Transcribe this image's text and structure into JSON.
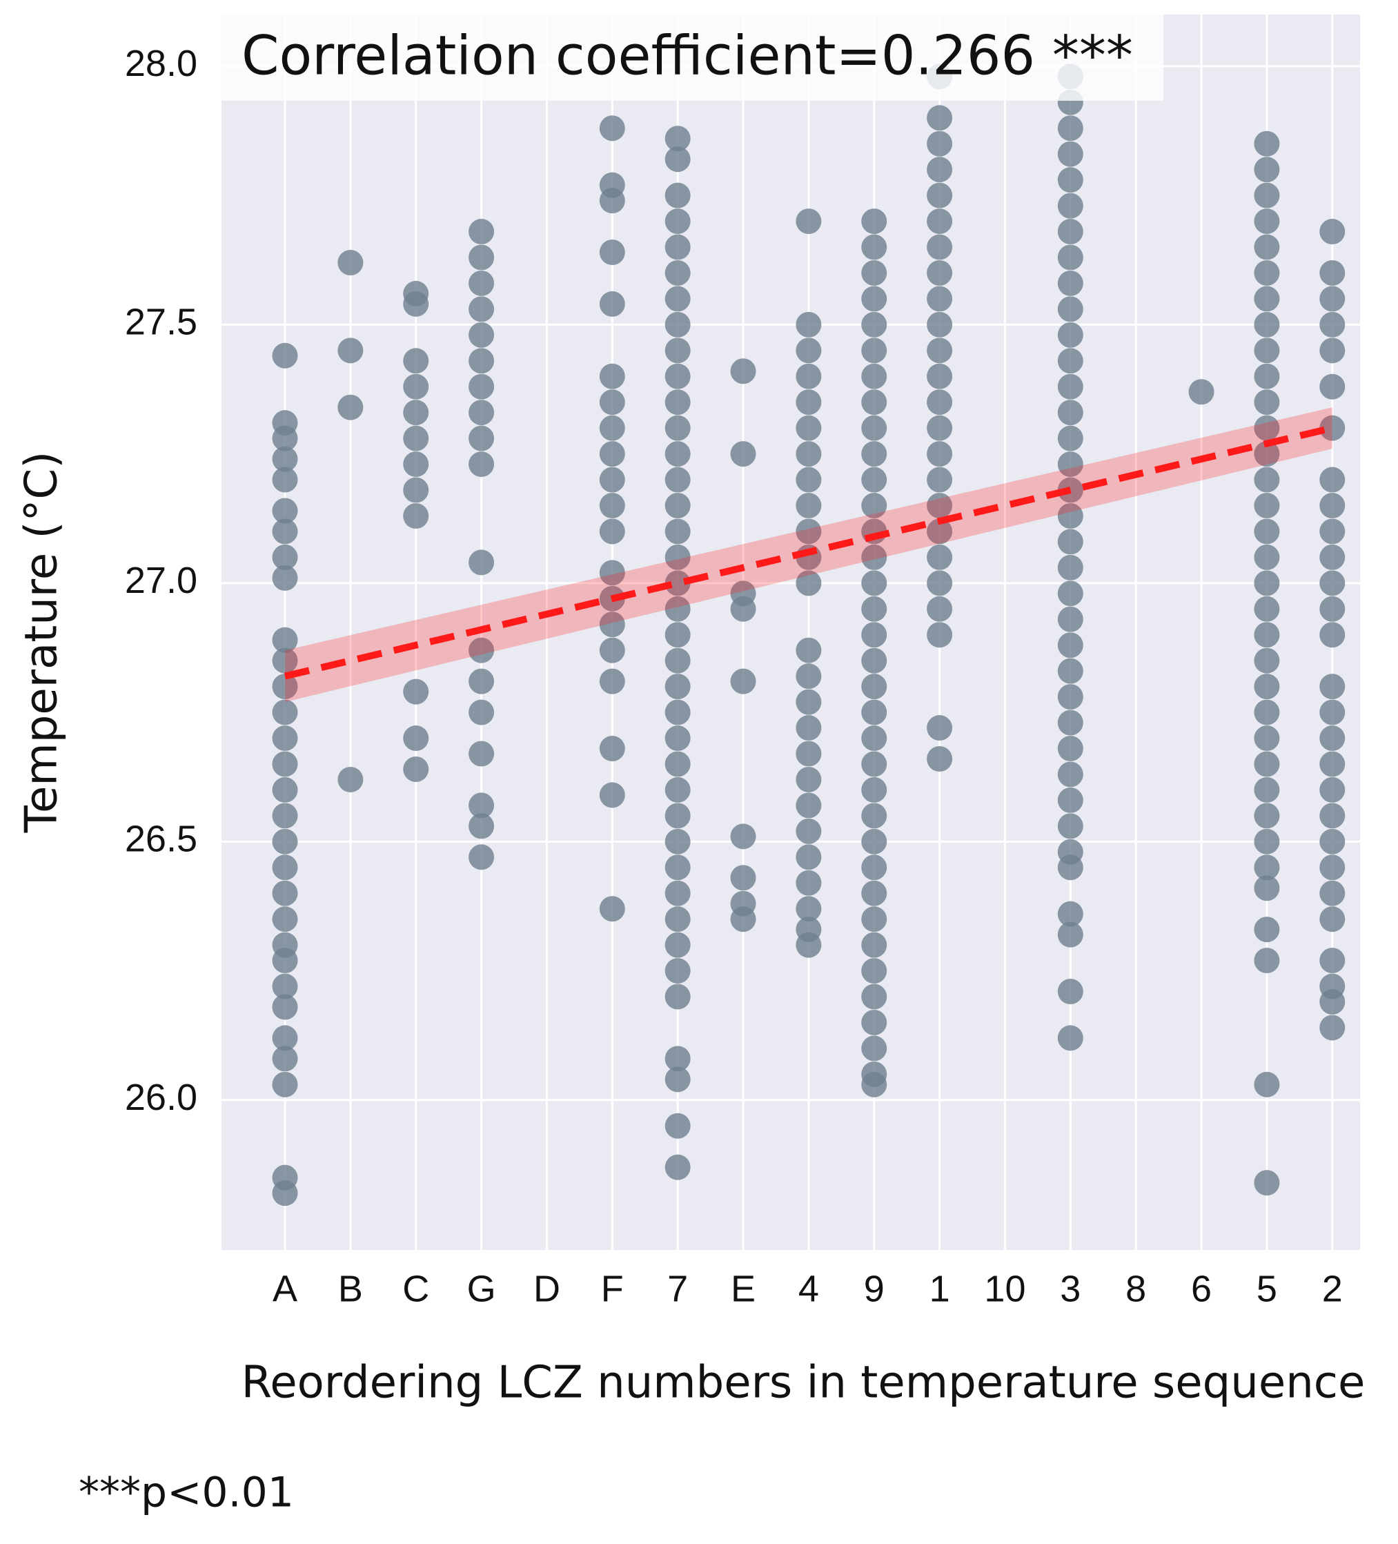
{
  "chart_data": {
    "type": "scatter",
    "title": "Correlation coefficient=0.266 ***",
    "xlabel": "Reordering LCZ numbers in temperature sequence",
    "ylabel": "Temperature (°C)",
    "note": "***p<0.01",
    "color": "#6e808f",
    "trend_color": "#ff1a1a",
    "grid": true,
    "categories": [
      "A",
      "B",
      "C",
      "G",
      "D",
      "F",
      "7",
      "E",
      "4",
      "9",
      "1",
      "10",
      "3",
      "8",
      "6",
      "5",
      "2"
    ],
    "values": [
      [
        27.44,
        27.31,
        27.28,
        27.24,
        27.2,
        27.14,
        27.1,
        27.05,
        27.01,
        26.89,
        26.85,
        26.8,
        26.75,
        26.7,
        26.65,
        26.6,
        26.55,
        26.5,
        26.45,
        26.4,
        26.35,
        26.3,
        26.27,
        26.22,
        26.18,
        26.12,
        26.08,
        26.03,
        25.85,
        25.82
      ],
      [
        27.62,
        27.45,
        27.34,
        26.62
      ],
      [
        27.56,
        27.54,
        27.43,
        27.38,
        27.33,
        27.28,
        27.23,
        27.18,
        27.13,
        26.79,
        26.7,
        26.64
      ],
      [
        27.68,
        27.63,
        27.58,
        27.53,
        27.48,
        27.43,
        27.38,
        27.33,
        27.28,
        27.23,
        27.04,
        26.87,
        26.81,
        26.75,
        26.67,
        26.57,
        26.53,
        26.47
      ],
      [],
      [
        27.88,
        27.77,
        27.74,
        27.64,
        27.54,
        27.4,
        27.35,
        27.3,
        27.25,
        27.2,
        27.15,
        27.1,
        27.02,
        26.97,
        26.92,
        26.87,
        26.81,
        26.68,
        26.59,
        26.37
      ],
      [
        27.86,
        27.82,
        27.75,
        27.7,
        27.65,
        27.6,
        27.55,
        27.5,
        27.45,
        27.4,
        27.35,
        27.3,
        27.25,
        27.2,
        27.15,
        27.1,
        27.05,
        27.0,
        26.95,
        26.9,
        26.85,
        26.8,
        26.75,
        26.7,
        26.65,
        26.6,
        26.55,
        26.5,
        26.45,
        26.4,
        26.35,
        26.3,
        26.25,
        26.2,
        26.08,
        26.04,
        25.95,
        25.87
      ],
      [
        27.41,
        27.25,
        26.98,
        26.95,
        26.81,
        26.51,
        26.43,
        26.38,
        26.35
      ],
      [
        27.7,
        27.5,
        27.45,
        27.4,
        27.35,
        27.3,
        27.25,
        27.2,
        27.15,
        27.1,
        27.05,
        27.0,
        26.87,
        26.82,
        26.77,
        26.72,
        26.67,
        26.62,
        26.57,
        26.52,
        26.47,
        26.42,
        26.37,
        26.33,
        26.3
      ],
      [
        27.7,
        27.65,
        27.6,
        27.55,
        27.5,
        27.45,
        27.4,
        27.35,
        27.3,
        27.25,
        27.2,
        27.15,
        27.1,
        27.05,
        27.0,
        26.95,
        26.9,
        26.85,
        26.8,
        26.75,
        26.7,
        26.65,
        26.6,
        26.55,
        26.5,
        26.45,
        26.4,
        26.35,
        26.3,
        26.25,
        26.2,
        26.15,
        26.1,
        26.05,
        26.03
      ],
      [
        27.98,
        27.9,
        27.85,
        27.8,
        27.75,
        27.7,
        27.65,
        27.6,
        27.55,
        27.5,
        27.45,
        27.4,
        27.35,
        27.3,
        27.25,
        27.2,
        27.15,
        27.1,
        27.05,
        27.0,
        26.95,
        26.9,
        26.72,
        26.66
      ],
      [],
      [
        27.98,
        27.93,
        27.88,
        27.83,
        27.78,
        27.73,
        27.68,
        27.63,
        27.58,
        27.53,
        27.48,
        27.43,
        27.38,
        27.33,
        27.28,
        27.23,
        27.18,
        27.13,
        27.08,
        27.03,
        26.98,
        26.93,
        26.88,
        26.83,
        26.78,
        26.73,
        26.68,
        26.63,
        26.58,
        26.53,
        26.48,
        26.45,
        26.36,
        26.32,
        26.21,
        26.12
      ],
      [],
      [
        27.37
      ],
      [
        27.85,
        27.8,
        27.75,
        27.7,
        27.65,
        27.6,
        27.55,
        27.5,
        27.45,
        27.4,
        27.35,
        27.3,
        27.25,
        27.2,
        27.15,
        27.1,
        27.05,
        27.0,
        26.95,
        26.9,
        26.85,
        26.8,
        26.75,
        26.7,
        26.65,
        26.6,
        26.55,
        26.5,
        26.45,
        26.41,
        26.33,
        26.27,
        26.03,
        25.84
      ],
      [
        27.68,
        27.6,
        27.55,
        27.5,
        27.45,
        27.38,
        27.3,
        27.2,
        27.15,
        27.1,
        27.05,
        27.0,
        26.95,
        26.9,
        26.8,
        26.75,
        26.7,
        26.65,
        26.6,
        26.55,
        26.5,
        26.45,
        26.4,
        26.35,
        26.27,
        26.22,
        26.19,
        26.14
      ]
    ],
    "trend": [
      26.82,
      27.3
    ],
    "trend_ci_low": [
      26.77,
      27.26
    ],
    "trend_ci_high": [
      26.87,
      27.34
    ],
    "ylim": [
      25.71,
      28.1
    ],
    "yticks": [
      {
        "value": 26,
        "label": "26.0"
      },
      26.5,
      {
        "value": 27,
        "label": "27.0"
      },
      27.5,
      {
        "value": 28,
        "label": "28.0"
      }
    ]
  }
}
